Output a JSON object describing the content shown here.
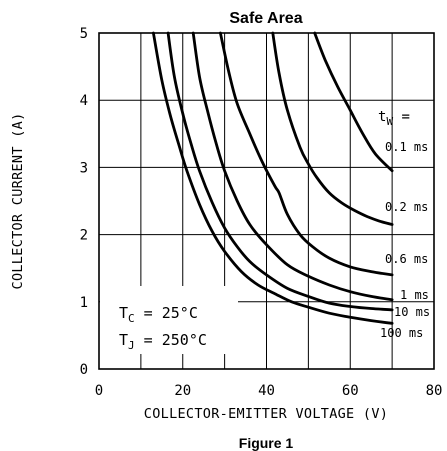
{
  "chart_data": {
    "type": "line",
    "title": "Safe Area",
    "xlabel": "COLLECTOR-EMITTER VOLTAGE (V)",
    "ylabel": "COLLECTOR CURRENT (A)",
    "xlim": [
      0,
      80
    ],
    "ylim": [
      0,
      5
    ],
    "x_ticks": [
      "0",
      "20",
      "40",
      "60",
      "80"
    ],
    "y_ticks": [
      "0",
      "1",
      "2",
      "3",
      "4",
      "5"
    ],
    "grid": true,
    "legend_title_main": "t",
    "legend_title_sub": "W",
    "legend_title_suffix": " =",
    "series": [
      {
        "name": "0.1 ms",
        "x": [
          51.5,
          54,
          57,
          60,
          63,
          66,
          70
        ],
        "y": [
          5.0,
          4.6,
          4.2,
          3.85,
          3.5,
          3.2,
          2.95
        ]
      },
      {
        "name": "0.2 ms",
        "x": [
          41.5,
          43,
          45,
          48,
          50,
          52,
          55,
          58,
          61,
          64,
          67,
          70
        ],
        "y": [
          5.0,
          4.4,
          3.85,
          3.3,
          3.05,
          2.85,
          2.62,
          2.47,
          2.36,
          2.27,
          2.2,
          2.15
        ]
      },
      {
        "name": "0.6 ms",
        "x": [
          29,
          31,
          33,
          36,
          39,
          42,
          43,
          45,
          48,
          51,
          55,
          60,
          65,
          70
        ],
        "y": [
          5.0,
          4.42,
          3.95,
          3.5,
          3.08,
          2.72,
          2.62,
          2.3,
          2.0,
          1.82,
          1.65,
          1.52,
          1.45,
          1.4
        ]
      },
      {
        "name": "1 ms",
        "x": [
          22.5,
          24,
          26,
          28,
          30,
          33,
          36,
          40,
          45,
          50,
          55,
          60,
          65,
          70
        ],
        "y": [
          5.0,
          4.35,
          3.82,
          3.35,
          2.95,
          2.5,
          2.15,
          1.85,
          1.55,
          1.38,
          1.25,
          1.15,
          1.08,
          1.03
        ]
      },
      {
        "name": "10 ms",
        "x": [
          16.5,
          18,
          20,
          22,
          24,
          27,
          30,
          33,
          36,
          40,
          45,
          50,
          55,
          60,
          65,
          70
        ],
        "y": [
          5.0,
          4.35,
          3.8,
          3.35,
          2.95,
          2.48,
          2.1,
          1.82,
          1.6,
          1.4,
          1.2,
          1.08,
          0.98,
          0.93,
          0.9,
          0.88
        ]
      },
      {
        "name": "100 ms",
        "x": [
          13,
          15,
          17,
          19,
          21,
          24,
          27,
          30,
          34,
          38,
          42,
          46,
          50,
          55,
          60,
          65,
          70
        ],
        "y": [
          5.0,
          4.3,
          3.78,
          3.35,
          2.95,
          2.45,
          2.05,
          1.75,
          1.45,
          1.25,
          1.12,
          1.0,
          0.92,
          0.83,
          0.77,
          0.72,
          0.68
        ]
      }
    ],
    "annotations": [
      {
        "main": "T",
        "sub": "C",
        "text": " = 25°C"
      },
      {
        "main": "T",
        "sub": "J",
        "text": " = 250°C"
      }
    ],
    "footer_partial": "Figure 1"
  }
}
